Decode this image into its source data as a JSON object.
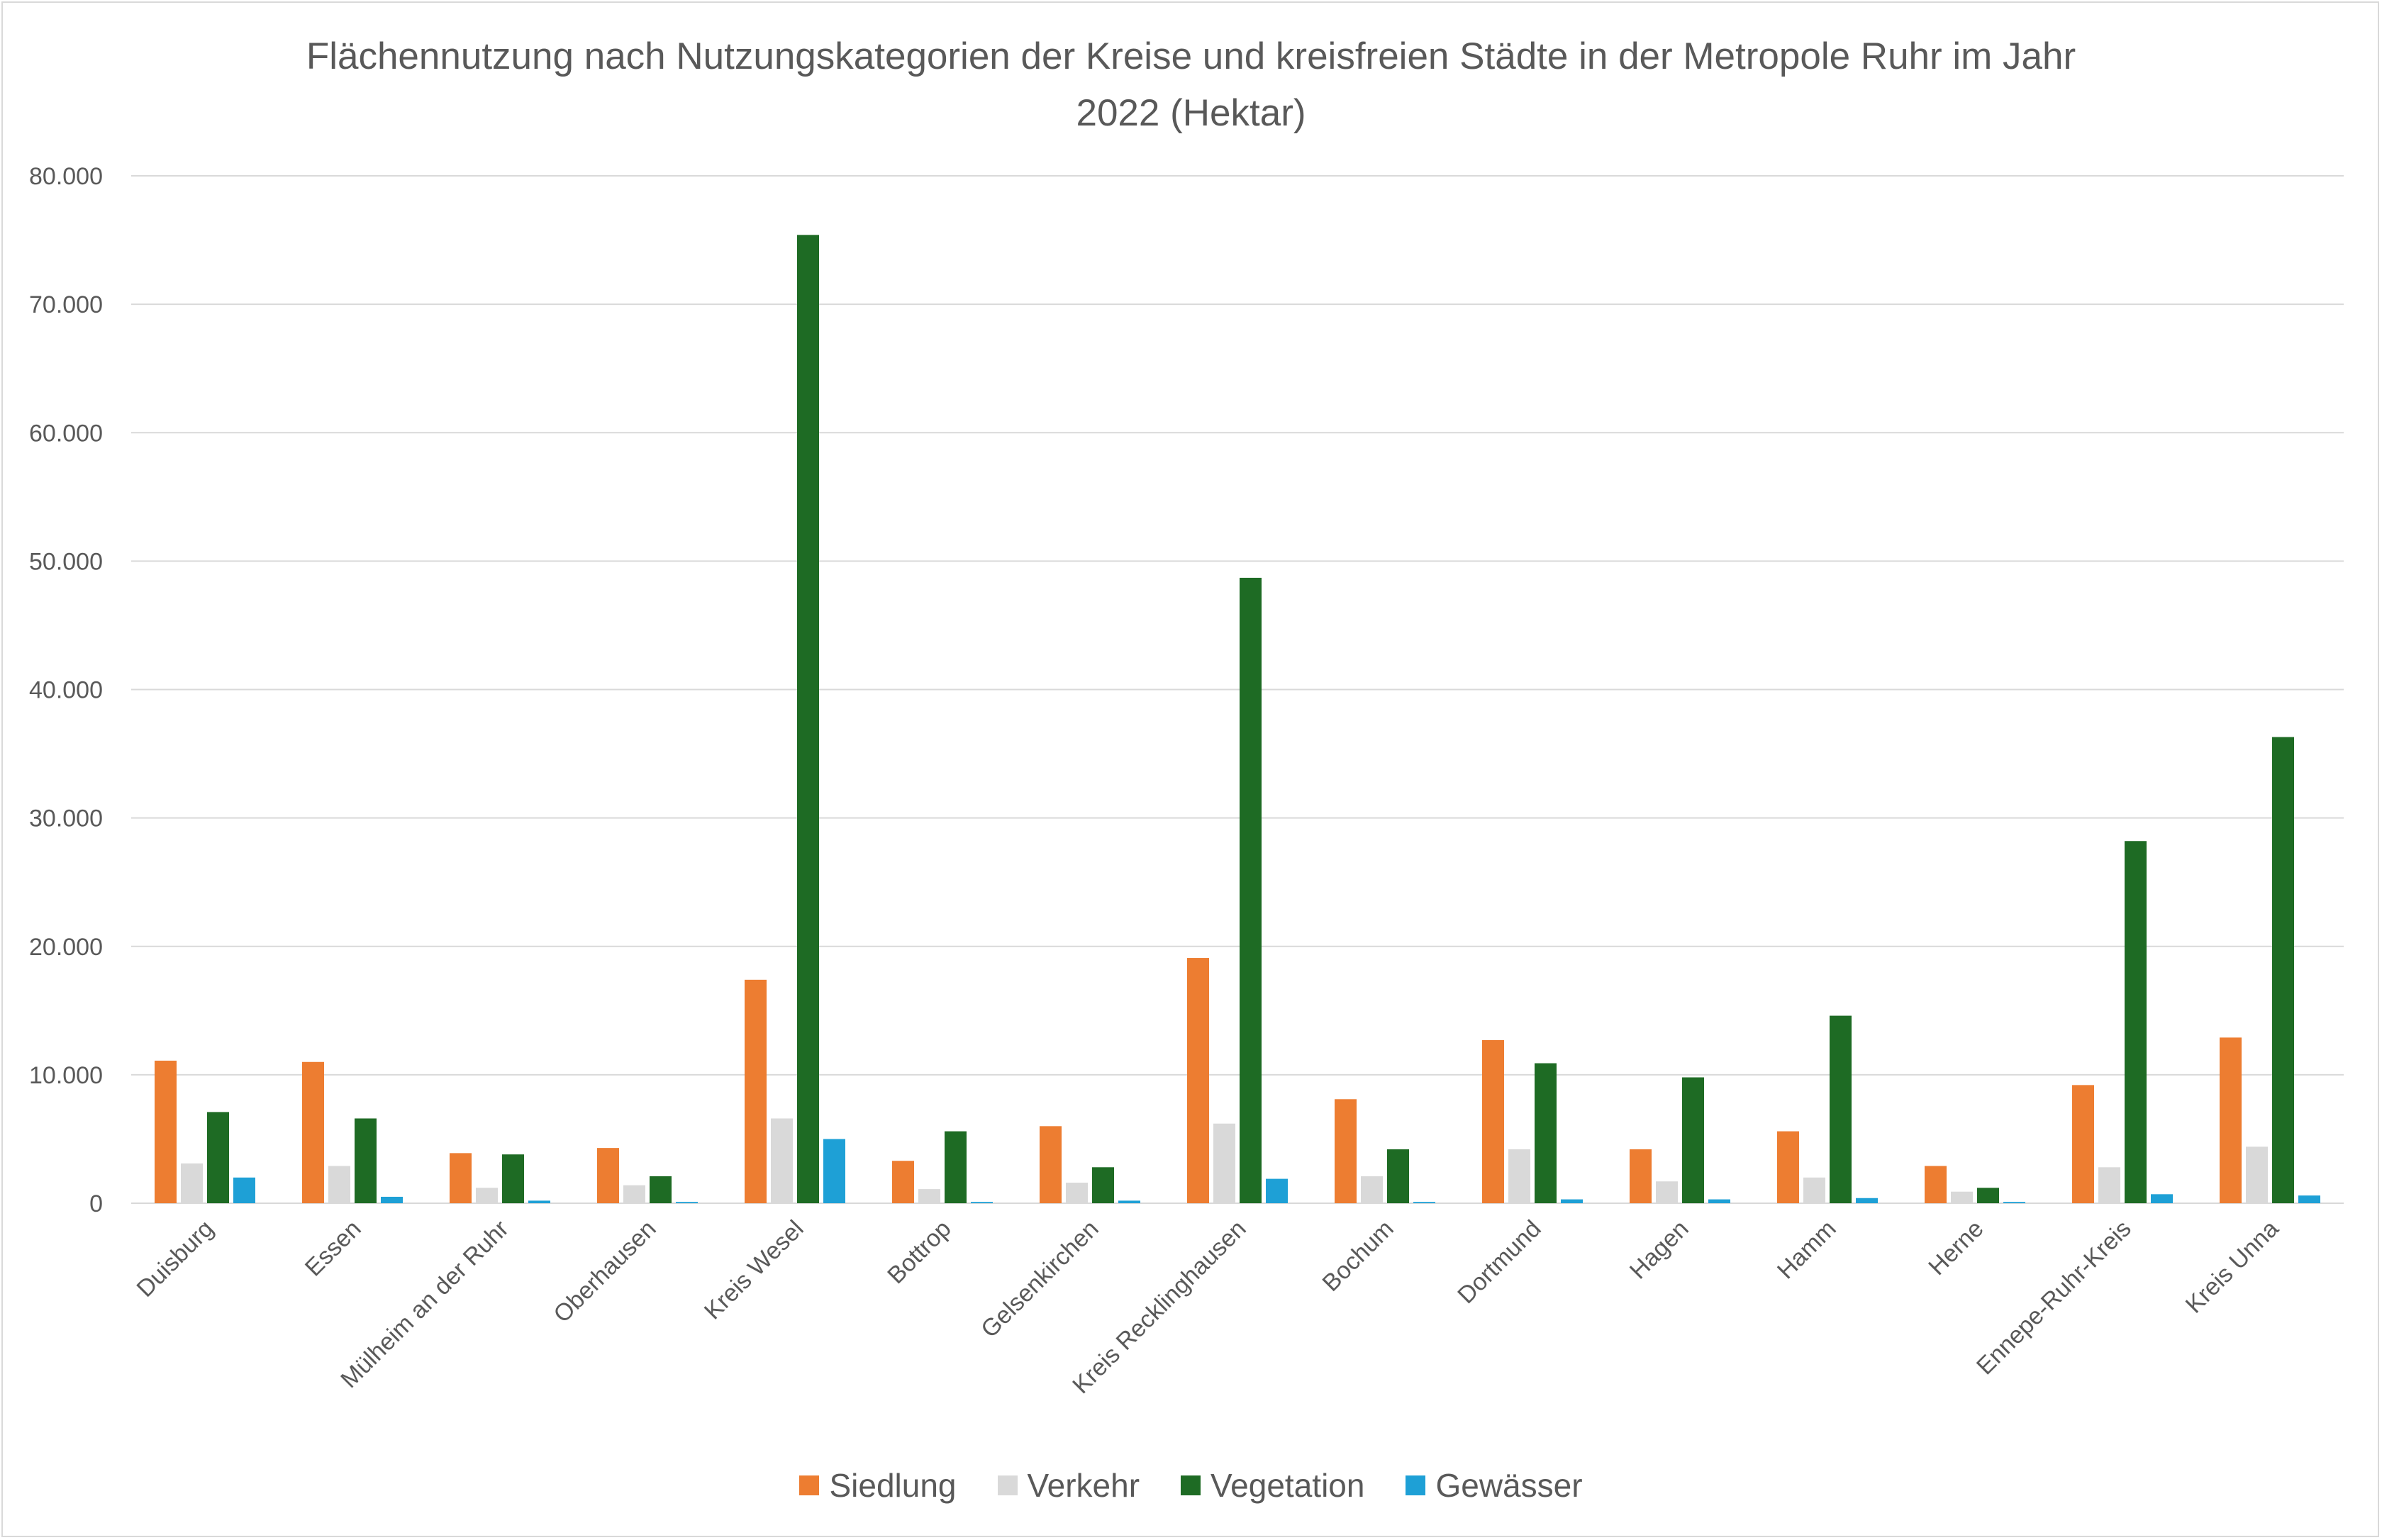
{
  "chart_data": {
    "type": "bar",
    "title": "Flächennutzung nach Nutzungskategorien der Kreise und kreisfreien Städte in der Metropole Ruhr im Jahr 2022 (Hektar)",
    "title_lines": [
      "Flächennutzung nach Nutzungskategorien der Kreise und kreisfreien Städte in der Metropole Ruhr im Jahr",
      "2022 (Hektar)"
    ],
    "xlabel": "",
    "ylabel": "",
    "ylim": [
      0,
      80000
    ],
    "yticks": [
      0,
      10000,
      20000,
      30000,
      40000,
      50000,
      60000,
      70000,
      80000
    ],
    "ytick_labels": [
      "0",
      "10.000",
      "20.000",
      "30.000",
      "40.000",
      "50.000",
      "60.000",
      "70.000",
      "80.000"
    ],
    "grid": "horizontal",
    "legend_position": "bottom",
    "categories": [
      "Duisburg",
      "Essen",
      "Mülheim an der Ruhr",
      "Oberhausen",
      "Kreis Wesel",
      "Bottrop",
      "Gelsenkirchen",
      "Kreis Recklinghausen",
      "Bochum",
      "Dortmund",
      "Hagen",
      "Hamm",
      "Herne",
      "Ennepe-Ruhr-Kreis",
      "Kreis Unna"
    ],
    "series": [
      {
        "name": "Siedlung",
        "color": "#ed7d31",
        "values": [
          11100,
          11000,
          3900,
          4300,
          17400,
          3300,
          6000,
          19100,
          8100,
          12700,
          4200,
          5600,
          2900,
          9200,
          12900
        ]
      },
      {
        "name": "Verkehr",
        "color": "#d9d9d9",
        "values": [
          3100,
          2900,
          1200,
          1400,
          6600,
          1100,
          1600,
          6200,
          2100,
          4200,
          1700,
          2000,
          900,
          2800,
          4400
        ]
      },
      {
        "name": "Vegetation",
        "color": "#1e6b24",
        "values": [
          7100,
          6600,
          3800,
          2100,
          75400,
          5600,
          2800,
          48700,
          4200,
          10900,
          9800,
          14600,
          1200,
          28200,
          36300
        ]
      },
      {
        "name": "Gewässer",
        "color": "#1ea0d6",
        "values": [
          2000,
          500,
          200,
          100,
          5000,
          100,
          200,
          1900,
          100,
          300,
          300,
          400,
          100,
          700,
          600
        ]
      }
    ]
  }
}
